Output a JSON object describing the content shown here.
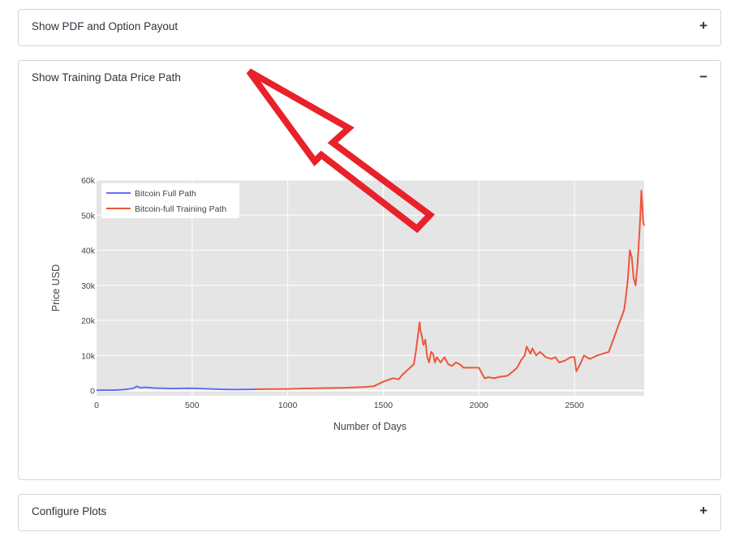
{
  "expanders": {
    "pdf": {
      "title": "Show PDF and Option Payout",
      "toggle": "+"
    },
    "training": {
      "title": "Show Training Data Price Path",
      "toggle": "−"
    },
    "configure": {
      "title": "Configure Plots",
      "toggle": "+"
    }
  },
  "annotation": {
    "icon": "red-arrow-outline-icon",
    "color": "#e8212b"
  },
  "chart_data": {
    "type": "line",
    "title": "",
    "xlabel": "Number of Days",
    "ylabel": "Price USD",
    "xlim": [
      0,
      2865
    ],
    "ylim": [
      -1500,
      60000
    ],
    "xticks": [
      0,
      500,
      1000,
      1500,
      2000,
      2500
    ],
    "xtick_labels": [
      "0",
      "500",
      "1000",
      "1500",
      "2000",
      "2500"
    ],
    "yticks": [
      0,
      10000,
      20000,
      30000,
      40000,
      50000,
      60000
    ],
    "ytick_labels": [
      "0",
      "10k",
      "20k",
      "30k",
      "40k",
      "50k",
      "60k"
    ],
    "grid": true,
    "legend_position": "top-left",
    "series": [
      {
        "name": "Bitcoin Full Path",
        "color": "#636efa",
        "x": [
          0,
          50,
          100,
          150,
          180,
          200,
          210,
          220,
          230,
          250,
          270,
          300,
          350,
          400,
          450,
          500,
          550,
          600,
          650,
          700,
          750,
          800,
          830
        ],
        "y": [
          100,
          120,
          120,
          300,
          500,
          800,
          1200,
          1000,
          800,
          900,
          850,
          700,
          650,
          550,
          600,
          650,
          550,
          450,
          350,
          300,
          300,
          320,
          350
        ]
      },
      {
        "name": "Bitcoin-full Training Path",
        "color": "#ef553b",
        "x": [
          830,
          900,
          1000,
          1100,
          1200,
          1300,
          1350,
          1400,
          1450,
          1500,
          1550,
          1580,
          1600,
          1620,
          1640,
          1660,
          1670,
          1680,
          1690,
          1695,
          1700,
          1710,
          1720,
          1730,
          1740,
          1750,
          1760,
          1770,
          1780,
          1800,
          1820,
          1840,
          1860,
          1880,
          1900,
          1920,
          1950,
          2000,
          2020,
          2030,
          2050,
          2080,
          2100,
          2150,
          2180,
          2200,
          2220,
          2240,
          2250,
          2260,
          2270,
          2280,
          2300,
          2320,
          2350,
          2380,
          2400,
          2420,
          2450,
          2480,
          2500,
          2510,
          2530,
          2550,
          2580,
          2600,
          2620,
          2650,
          2680,
          2700,
          2720,
          2740,
          2760,
          2770,
          2780,
          2790,
          2800,
          2810,
          2820,
          2830,
          2840,
          2845,
          2850,
          2855,
          2860,
          2865
        ],
        "y": [
          350,
          400,
          450,
          600,
          700,
          800,
          900,
          1000,
          1200,
          2500,
          3500,
          3200,
          4500,
          5500,
          6500,
          7500,
          11000,
          15000,
          19500,
          17000,
          16000,
          13000,
          14500,
          9500,
          8000,
          11000,
          10500,
          8000,
          9500,
          8000,
          9500,
          7500,
          7000,
          8000,
          7500,
          6500,
          6500,
          6500,
          4500,
          3500,
          3800,
          3500,
          3800,
          4200,
          5500,
          6500,
          8500,
          10000,
          12500,
          11500,
          10500,
          12000,
          10000,
          11000,
          9500,
          9000,
          9500,
          8000,
          8500,
          9500,
          9500,
          5500,
          7500,
          10000,
          9000,
          9500,
          10000,
          10500,
          11000,
          14000,
          17000,
          20000,
          23000,
          27000,
          32000,
          40000,
          38000,
          32000,
          30000,
          36000,
          45000,
          50000,
          57000,
          53000,
          48000,
          47000
        ]
      }
    ]
  }
}
